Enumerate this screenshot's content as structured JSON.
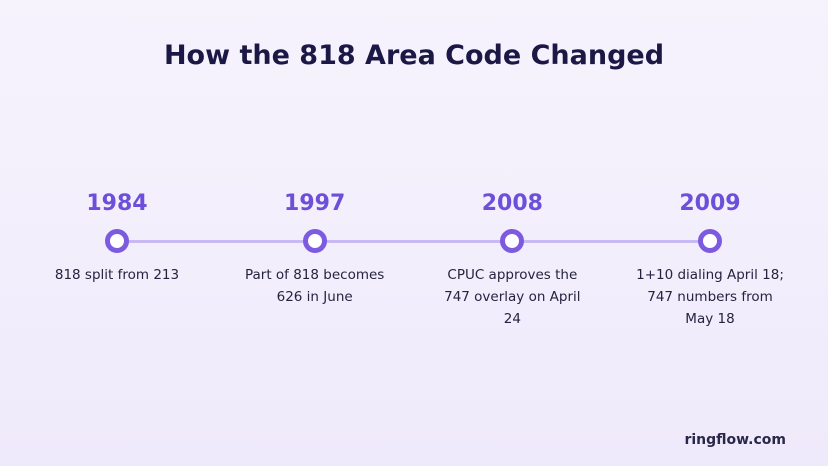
{
  "title": "How the 818 Area Code Changed",
  "events": [
    {
      "year": "1984",
      "text": "818 split from 213"
    },
    {
      "year": "1997",
      "text": "Part of 818 becomes 626 in June"
    },
    {
      "year": "2008",
      "text": "CPUC approves the 747 overlay on April 24"
    },
    {
      "year": "2009",
      "text": "1+10 dialing April 18; 747 numbers from May 18"
    }
  ],
  "footer": "ringflow.com"
}
